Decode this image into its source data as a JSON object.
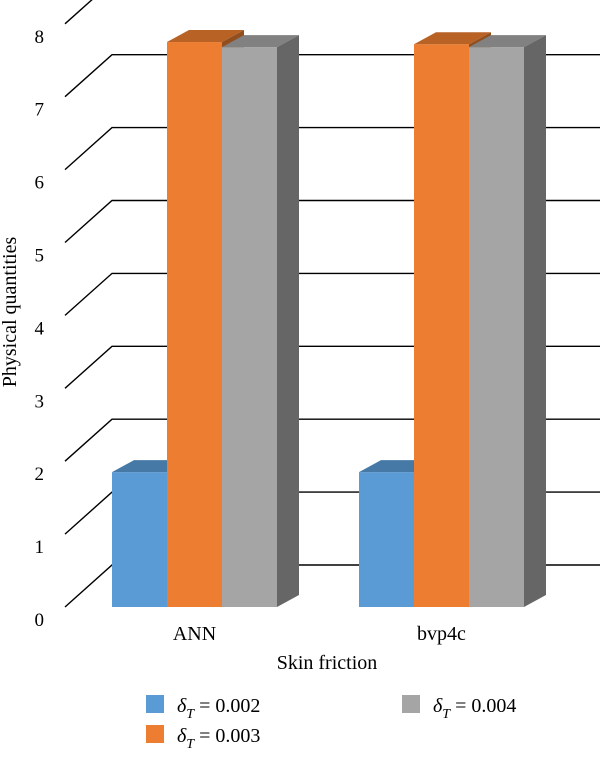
{
  "chart_data": {
    "type": "bar",
    "style": "3d-clustered-column",
    "categories": [
      "ANN",
      "bvp4c"
    ],
    "series": [
      {
        "name": "δT = 0.002",
        "color": "#5b9bd5",
        "values": [
          1.85,
          1.85
        ]
      },
      {
        "name": "δT = 0.003",
        "color": "#ed7d31",
        "values": [
          7.75,
          7.72
        ]
      },
      {
        "name": "δT = 0.004",
        "color": "#a5a5a5",
        "values": [
          7.68,
          7.68
        ]
      }
    ],
    "xlabel": "Skin friction",
    "ylabel": "Physical quantities",
    "ylim": [
      0,
      8
    ],
    "yticks": [
      "0",
      "1",
      "2",
      "3",
      "4",
      "5",
      "6",
      "7",
      "8"
    ],
    "grid": true,
    "legend": {
      "position": "bottom",
      "entries": [
        {
          "symbol": "δ",
          "sub": "T",
          "rest": " = 0.002",
          "color": "#5b9bd5"
        },
        {
          "symbol": "δ",
          "sub": "T",
          "rest": " = 0.004",
          "color": "#a5a5a5"
        },
        {
          "symbol": "δ",
          "sub": "T",
          "rest": " = 0.003",
          "color": "#ed7d31"
        }
      ]
    }
  }
}
